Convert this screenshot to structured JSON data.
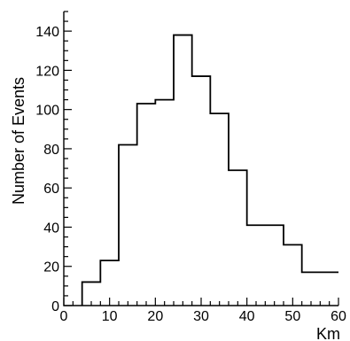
{
  "chart_data": {
    "type": "histogram",
    "title": "",
    "xlabel": "Km",
    "ylabel": "Number of Events",
    "xlim": [
      0,
      60
    ],
    "ylim": [
      0,
      150
    ],
    "bin_edges": [
      4,
      8,
      12,
      16,
      20,
      24,
      28,
      32,
      36,
      40,
      44,
      48,
      52,
      56,
      60
    ],
    "values": [
      12,
      23,
      82,
      103,
      105,
      138,
      117,
      98,
      69,
      41,
      41,
      31,
      17,
      17
    ],
    "x_ticks": [
      0,
      10,
      20,
      30,
      40,
      50,
      60
    ],
    "y_ticks": [
      0,
      20,
      40,
      60,
      80,
      100,
      120,
      140
    ],
    "grid": false,
    "legend": "none"
  }
}
